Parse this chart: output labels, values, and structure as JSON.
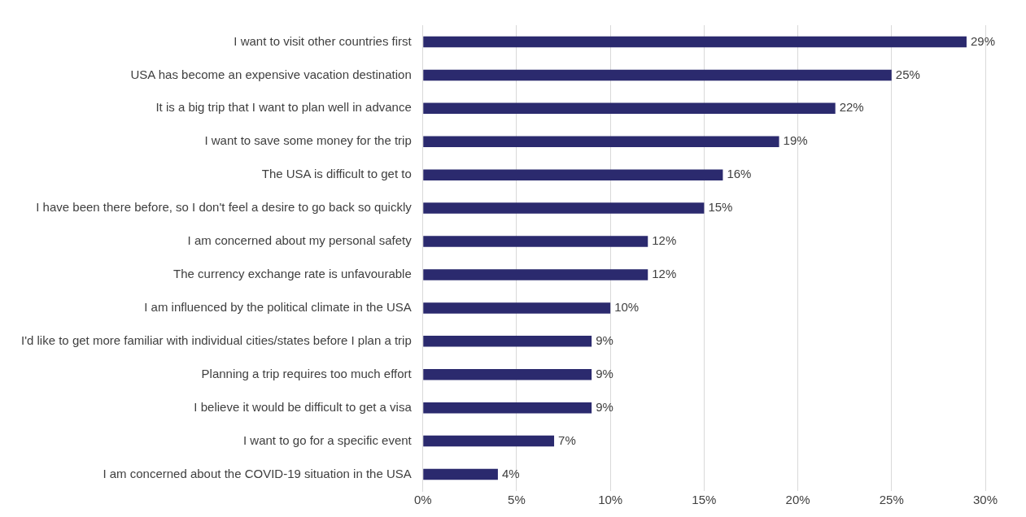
{
  "chart_data": {
    "type": "bar",
    "orientation": "horizontal",
    "categories": [
      "I want to visit other countries first",
      "USA has become an expensive vacation destination",
      "It is a big trip that I want to plan well in advance",
      "I want to save some money for the trip",
      "The USA is difficult to get to",
      "I have been there before, so I don't feel a desire to go back so quickly",
      "I am concerned about my personal safety",
      "The currency exchange rate is unfavourable",
      "I am influenced by the political climate in the USA",
      "I'd like to get more familiar with individual cities/states before I plan a trip",
      "Planning a trip requires too much effort",
      "I believe it would be difficult to get a visa",
      "I want to go for a specific event",
      "I am concerned about the COVID-19 situation in the USA"
    ],
    "values": [
      29,
      25,
      22,
      19,
      16,
      15,
      12,
      12,
      10,
      9,
      9,
      9,
      7,
      4
    ],
    "value_labels": [
      "29%",
      "25%",
      "22%",
      "19%",
      "16%",
      "15%",
      "12%",
      "12%",
      "10%",
      "9%",
      "9%",
      "9%",
      "7%",
      "4%"
    ],
    "color": "#2b2a6e",
    "xlim": [
      0,
      30
    ],
    "xticks": [
      {
        "value": 0,
        "label": "0%"
      },
      {
        "value": 5,
        "label": "5%"
      },
      {
        "value": 10,
        "label": "10%"
      },
      {
        "value": 15,
        "label": "15%"
      },
      {
        "value": 20,
        "label": "20%"
      },
      {
        "value": 25,
        "label": "25%"
      },
      {
        "value": 30,
        "label": "30%"
      }
    ],
    "grid": "x",
    "legend": false
  }
}
